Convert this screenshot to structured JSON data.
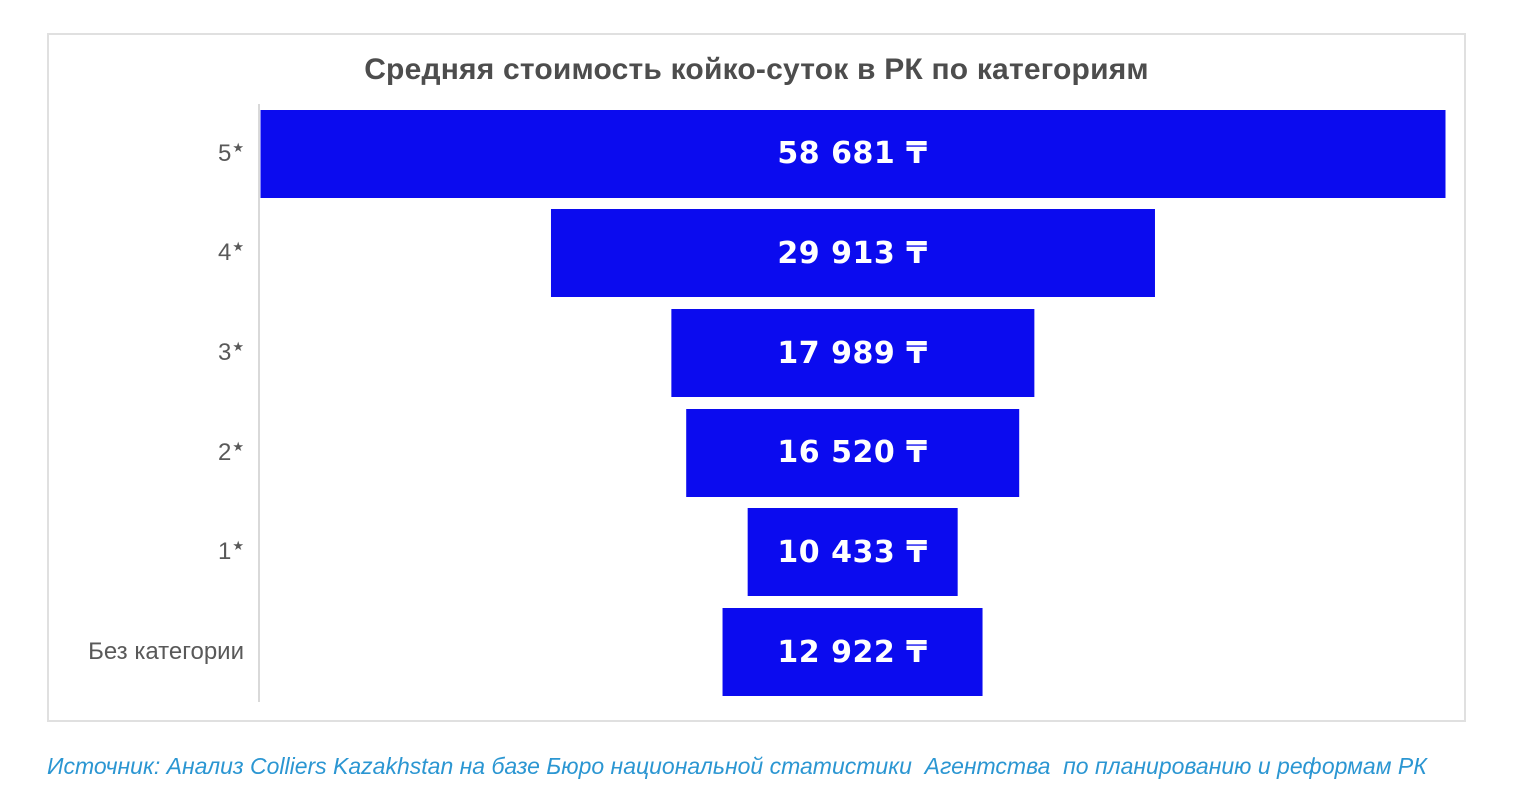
{
  "chart_data": {
    "type": "bar",
    "subtype": "horizontal-centered-funnel",
    "title": "Средняя стоимость койко-суток в РК по категориям",
    "categories": [
      "5★",
      "4★",
      "3★",
      "2★",
      "1★",
      "Без категории"
    ],
    "category_numbers": [
      "5",
      "4",
      "3",
      "2",
      "1"
    ],
    "no_category_label": "Без категории",
    "values": [
      58681,
      29913,
      17989,
      16520,
      10433,
      12922
    ],
    "value_labels": [
      "58 681 ₸",
      "29 913 ₸",
      "17 989 ₸",
      "16 520 ₸",
      "10 433 ₸",
      "12 922 ₸"
    ],
    "unit": "₸",
    "xlim": [
      0,
      58681
    ],
    "grid": false,
    "legend": false,
    "bar_color": "#0b0bef",
    "value_label_color": "#ffffff"
  },
  "icons": {
    "star_char": "★"
  },
  "source": {
    "text": "Источник: Анализ Colliers Kazakhstan на базе Бюро национальной статистики  Агентства  по планированию и реформам РК",
    "color": "#2b96d2"
  },
  "colors": {
    "title": "#4d4d4d",
    "category_label": "#595959",
    "card_border": "#e0e0e0",
    "axis_line": "#d9d9d9",
    "background": "#ffffff"
  }
}
